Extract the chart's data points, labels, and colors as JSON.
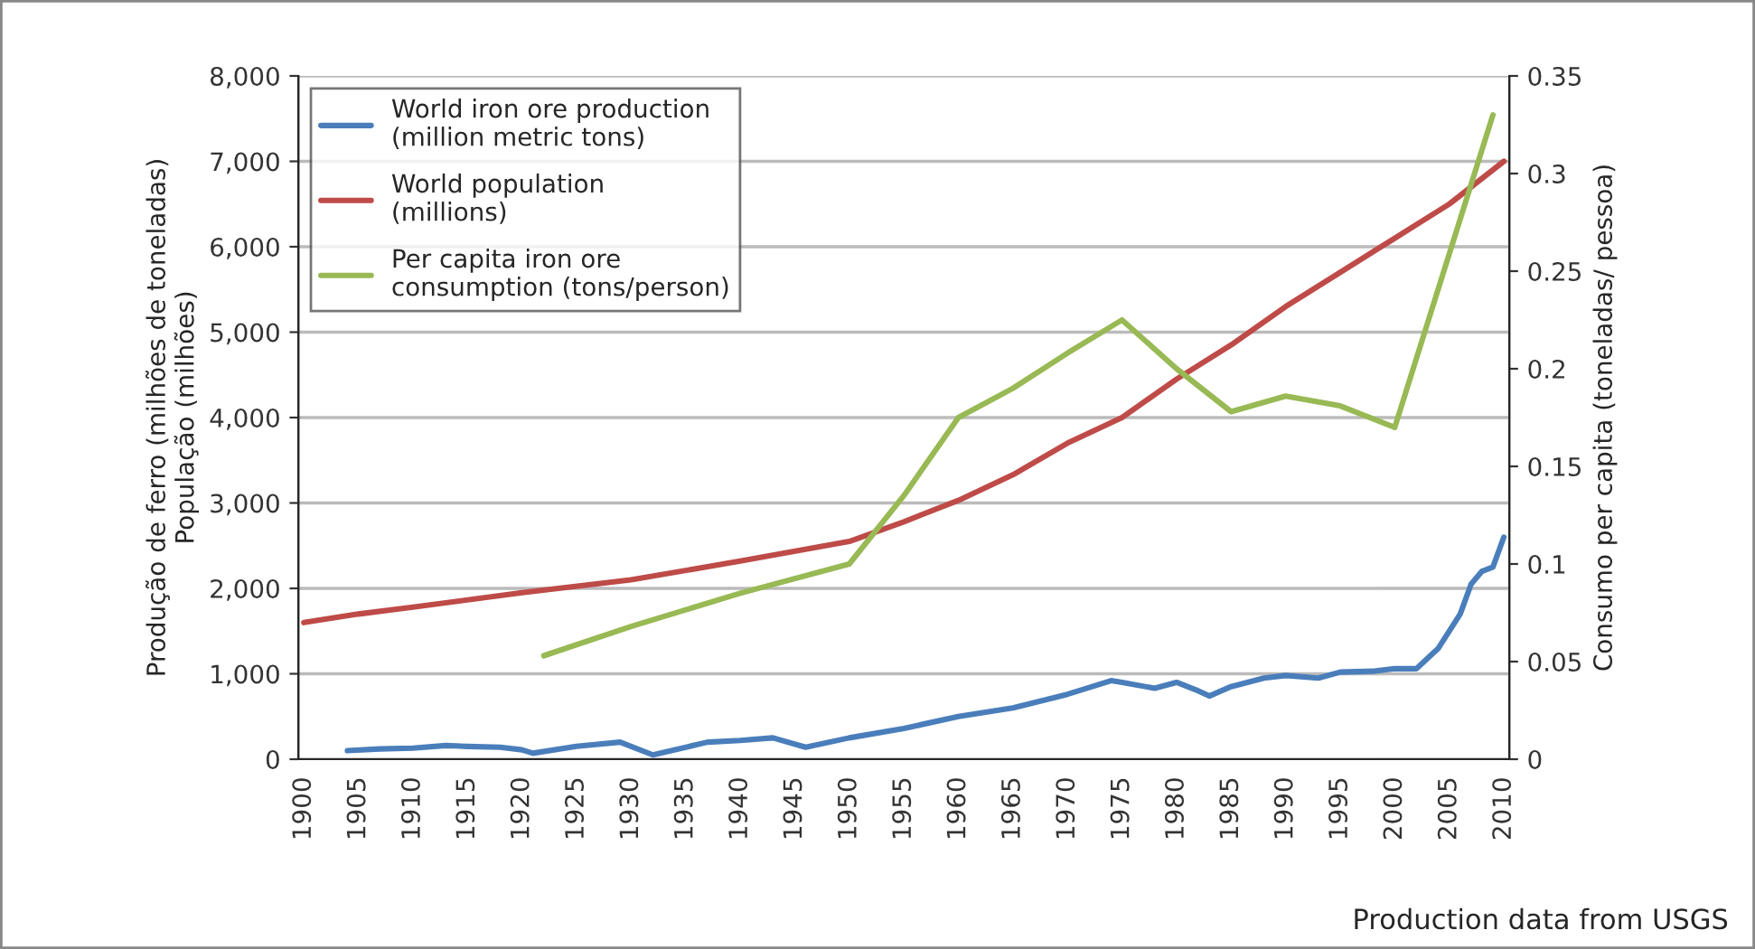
{
  "chart_data": {
    "type": "line",
    "ylabel": "Produção de ferro (milhões de toneladas)\nPopulação (milhões)",
    "y2label": "Consumo per capita (toneladas/ pessoa)",
    "annotations": [
      "Production data from USGS"
    ],
    "xlim": [
      1899.5,
      2010.5
    ],
    "xticks": [
      1900,
      1905,
      1910,
      1915,
      1920,
      1925,
      1930,
      1935,
      1940,
      1945,
      1950,
      1955,
      1960,
      1965,
      1970,
      1975,
      1980,
      1985,
      1990,
      1995,
      2000,
      2005,
      2010
    ],
    "ylim": [
      0,
      8000
    ],
    "yticks": [
      {
        "value": 0,
        "label": "0"
      },
      {
        "value": 1000,
        "label": "1,000"
      },
      {
        "value": 2000,
        "label": "2,000"
      },
      {
        "value": 3000,
        "label": "3,000"
      },
      {
        "value": 4000,
        "label": "4,000"
      },
      {
        "value": 5000,
        "label": "5,000"
      },
      {
        "value": 6000,
        "label": "6,000"
      },
      {
        "value": 7000,
        "label": "7,000"
      },
      {
        "value": 8000,
        "label": "8,000"
      }
    ],
    "y2lim": [
      0,
      0.35
    ],
    "y2ticks": [
      0,
      0.05,
      0.1,
      0.15,
      0.2,
      0.25,
      0.3,
      0.35
    ],
    "grid": "y",
    "legend": "top left",
    "series": [
      {
        "name": "World iron ore production\n(million metric tons)",
        "color": "#4a7ebb",
        "axis": "y",
        "x": [
          1904,
          1907,
          1910,
          1913,
          1915,
          1918,
          1920,
          1921,
          1925,
          1929,
          1932,
          1937,
          1940,
          1943,
          1946,
          1950,
          1955,
          1960,
          1965,
          1970,
          1974,
          1975,
          1978,
          1980,
          1982,
          1983,
          1985,
          1988,
          1990,
          1993,
          1995,
          1998,
          2000,
          2002,
          2004,
          2006,
          2007,
          2008,
          2009,
          2010
        ],
        "values": [
          100,
          120,
          130,
          160,
          150,
          140,
          110,
          70,
          150,
          200,
          50,
          200,
          220,
          250,
          140,
          250,
          360,
          500,
          600,
          760,
          920,
          900,
          830,
          900,
          800,
          740,
          850,
          950,
          980,
          950,
          1020,
          1030,
          1060,
          1060,
          1300,
          1700,
          2050,
          2200,
          2250,
          2600
        ]
      },
      {
        "name": "World population\n(millions)",
        "color": "#be4b48",
        "axis": "y",
        "x": [
          1900,
          1905,
          1910,
          1920,
          1930,
          1940,
          1950,
          1955,
          1960,
          1965,
          1970,
          1975,
          1980,
          1985,
          1990,
          1995,
          2000,
          2005,
          2010
        ],
        "values": [
          1600,
          1700,
          1780,
          1950,
          2100,
          2320,
          2550,
          2780,
          3030,
          3330,
          3700,
          4000,
          4450,
          4850,
          5300,
          5700,
          6100,
          6500,
          7000
        ]
      },
      {
        "name": "Per capita iron ore\nconsumption (tons/person)",
        "color": "#98b954",
        "axis": "y2",
        "x": [
          1922,
          1930,
          1940,
          1950,
          1955,
          1960,
          1965,
          1970,
          1975,
          1980,
          1985,
          1990,
          1995,
          2000,
          2009
        ],
        "values": [
          0.053,
          0.068,
          0.085,
          0.1,
          0.135,
          0.175,
          0.19,
          0.208,
          0.225,
          0.2,
          0.178,
          0.186,
          0.181,
          0.17,
          0.33
        ]
      }
    ]
  }
}
